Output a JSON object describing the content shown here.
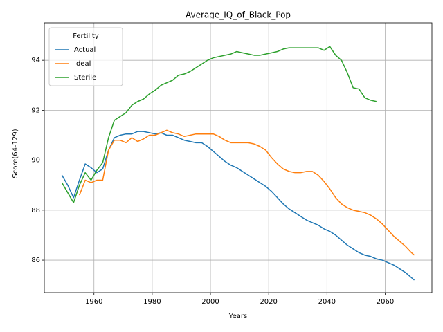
{
  "chart_data": {
    "type": "line",
    "title": "Average_IQ_of_Black_Pop",
    "xlabel": "Years",
    "ylabel": "Score(64-129)",
    "legend_title": "Fertility",
    "legend_loc": "upper left",
    "grid": true,
    "xlim": [
      1942.95,
      2076.05
    ],
    "ylim": [
      84.7,
      95.5
    ],
    "xticks": [
      1960,
      1980,
      2000,
      2020,
      2040,
      2060
    ],
    "yticks": [
      86,
      88,
      90,
      92,
      94
    ],
    "x": [
      1949,
      1951,
      1953,
      1955,
      1957,
      1959,
      1961,
      1963,
      1965,
      1967,
      1969,
      1971,
      1973,
      1975,
      1977,
      1979,
      1981,
      1983,
      1985,
      1987,
      1989,
      1991,
      1993,
      1995,
      1997,
      1999,
      2001,
      2003,
      2005,
      2007,
      2009,
      2011,
      2013,
      2015,
      2017,
      2019,
      2021,
      2023,
      2025,
      2027,
      2029,
      2031,
      2033,
      2035,
      2037,
      2039,
      2041,
      2043,
      2045,
      2047,
      2049,
      2051,
      2053,
      2055,
      2057,
      2059,
      2061,
      2063,
      2065,
      2067,
      2069,
      2070
    ],
    "series": [
      {
        "name": "Actual",
        "color": "#1f77b4",
        "values": [
          89.4,
          89.0,
          88.5,
          89.2,
          89.85,
          89.7,
          89.5,
          89.65,
          90.4,
          90.9,
          91.0,
          91.05,
          91.05,
          91.15,
          91.15,
          91.1,
          91.05,
          91.1,
          91.0,
          91.0,
          90.9,
          90.8,
          90.75,
          90.7,
          90.7,
          90.55,
          90.35,
          90.15,
          89.95,
          89.8,
          89.7,
          89.55,
          89.4,
          89.25,
          89.1,
          88.95,
          88.75,
          88.5,
          88.25,
          88.05,
          87.9,
          87.75,
          87.6,
          87.5,
          87.4,
          87.25,
          87.15,
          87.0,
          86.8,
          86.6,
          86.45,
          86.3,
          86.2,
          86.15,
          86.05,
          86.0,
          85.9,
          85.8,
          85.65,
          85.5,
          85.3,
          85.2
        ]
      },
      {
        "name": "Ideal",
        "color": "#ff7f0e",
        "values": [
          null,
          null,
          null,
          88.6,
          89.2,
          89.1,
          89.2,
          89.2,
          90.4,
          90.8,
          90.8,
          90.7,
          90.9,
          90.75,
          90.85,
          91.0,
          91.0,
          91.1,
          91.2,
          91.1,
          91.05,
          90.95,
          91.0,
          91.05,
          91.05,
          91.05,
          91.05,
          90.95,
          90.8,
          90.7,
          90.7,
          90.7,
          90.7,
          90.65,
          90.55,
          90.4,
          90.1,
          89.85,
          89.65,
          89.55,
          89.5,
          89.5,
          89.55,
          89.55,
          89.4,
          89.15,
          88.85,
          88.5,
          88.25,
          88.1,
          88.0,
          87.95,
          87.9,
          87.8,
          87.65,
          87.45,
          87.2,
          86.95,
          86.75,
          86.55,
          86.3,
          86.2
        ]
      },
      {
        "name": "Sterile",
        "color": "#2ca02c",
        "values": [
          89.1,
          88.7,
          88.3,
          89.0,
          89.5,
          89.2,
          89.6,
          89.9,
          90.9,
          91.6,
          91.75,
          91.9,
          92.2,
          92.35,
          92.45,
          92.65,
          92.8,
          93.0,
          93.1,
          93.2,
          93.4,
          93.45,
          93.55,
          93.7,
          93.85,
          94.0,
          94.1,
          94.15,
          94.2,
          94.25,
          94.35,
          94.3,
          94.25,
          94.2,
          94.2,
          94.25,
          94.3,
          94.35,
          94.45,
          94.5,
          94.5,
          94.5,
          94.5,
          94.5,
          94.5,
          94.4,
          94.55,
          94.2,
          94.0,
          93.5,
          92.9,
          92.85,
          92.5,
          92.4,
          92.35,
          null,
          null,
          null,
          null,
          null,
          null,
          null
        ]
      }
    ]
  }
}
